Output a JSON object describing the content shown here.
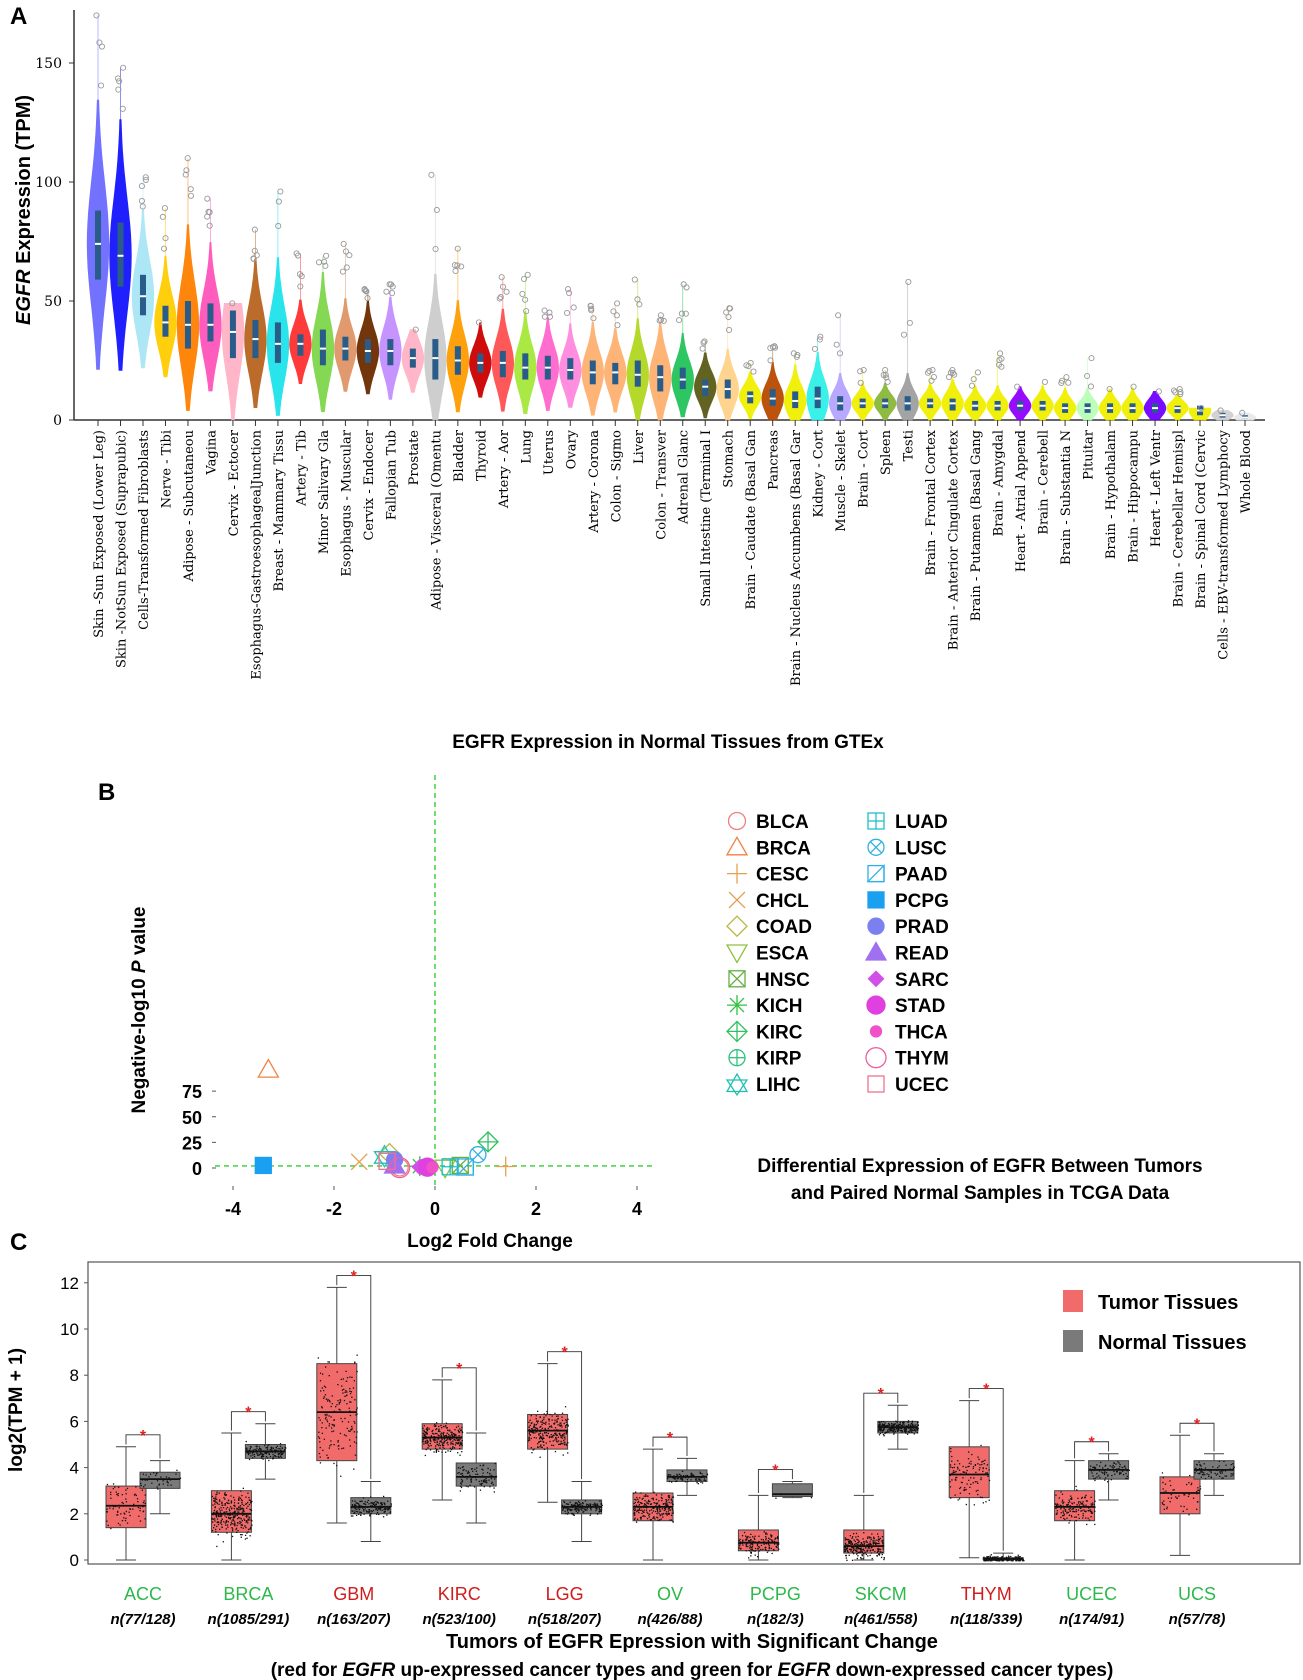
{
  "chart_data": [
    {
      "panel": "A",
      "type": "violin",
      "title": "EGFR Expression in Normal Tissues from GTEx",
      "ylabel_italic": "EGFR",
      "ylabel_rest": " Expression (TPM)",
      "yticks": [
        0,
        50,
        100,
        150
      ],
      "ylim": [
        0,
        172
      ],
      "categories": [
        "Skin -Sun Exposed (Lower Leg)",
        "Skin -NotSun Exposed (Suprapubic)",
        "Cells-Transformed Fibroblasts",
        "Nerve - Tibi",
        "Adipose - Subcutaneou",
        "Vagina",
        "Cervix - Ectocer",
        "Esophagus-GastroesophagealJunction",
        "Breast - Mammary Tissu",
        "Artery - Tib",
        "Minor Salivary Gla",
        "Esophagus - Muscular",
        "Cervix - Endocer",
        "Fallopian Tub",
        "Prostate",
        "Adipose - Visceral (Omentu",
        "Bladder",
        "Thyroid",
        "Artery - Aor",
        "Lung",
        "Uterus",
        "Ovary",
        "Artery - Corona",
        "Colon - Sigmo",
        "Liver",
        "Colon - Transver",
        "Adrenal Glanc",
        "Small Intestine (Terminal I",
        "Stomach",
        "Brain - Caudate (Basal Gan",
        "Pancreas",
        "Brain - Nucleus Accumbens (Basal Gar",
        "Kidney - Cort",
        "Muscle - Skelet",
        "Brain - Cort",
        "Spleen",
        "Testi",
        "Brain - Frontal Cortex",
        "Brain - Anterior Cingulate Cortex",
        "Brain - Putamen (Basal Gang",
        "Brain - Amygdal",
        "Heart - Atrial Append",
        "Brain - Cerebell",
        "Brain - Substantia N",
        "Pituitar",
        "Brain - Hypothalam",
        "Brain - Hippocampu",
        "Heart - Left Ventr",
        "Brain - Cerebellar Hemispl",
        "Brain - Spinal Cord (Cervic",
        "Cells - EBV-transformed Lymphocy",
        "Whole Blood"
      ],
      "medians": [
        74,
        69,
        52,
        41,
        40,
        40,
        37,
        34,
        32,
        32,
        30,
        30,
        29,
        29,
        26,
        26,
        25,
        24,
        24,
        22,
        22,
        21,
        20,
        20,
        19,
        18,
        17,
        14,
        13,
        10,
        9,
        8,
        9,
        7,
        7,
        7,
        7,
        7,
        7,
        6,
        6,
        6,
        6,
        5,
        5,
        5,
        5,
        5,
        5,
        4,
        2,
        1
      ],
      "q1": [
        59,
        56,
        44,
        35,
        30,
        33,
        26,
        26,
        24,
        27,
        23,
        25,
        24,
        23,
        22,
        17,
        19,
        20,
        18,
        17,
        17,
        17,
        15,
        15,
        14,
        12,
        13,
        10,
        9,
        7,
        6,
        5,
        5,
        4,
        5,
        5,
        4,
        5,
        4,
        4,
        4,
        4,
        4,
        3,
        3,
        3,
        3,
        3,
        3,
        2,
        1,
        0.5
      ],
      "q3": [
        88,
        83,
        61,
        48,
        50,
        49,
        46,
        42,
        41,
        36,
        38,
        35,
        34,
        34,
        30,
        34,
        31,
        28,
        29,
        28,
        27,
        26,
        25,
        24,
        25,
        23,
        22,
        17,
        17,
        12,
        13,
        12,
        14,
        10,
        9,
        9,
        10,
        9,
        9,
        8,
        8,
        8,
        8,
        7,
        7,
        7,
        7,
        7,
        6,
        6,
        3,
        2
      ],
      "maxes": [
        170,
        148,
        102,
        89,
        110,
        93,
        49,
        80,
        96,
        70,
        69,
        74,
        55,
        57,
        38,
        103,
        72,
        41,
        60,
        61,
        46,
        55,
        48,
        49,
        59,
        44,
        57,
        33,
        47,
        24,
        31,
        28,
        35,
        44,
        21,
        21,
        58,
        21,
        21,
        20,
        28,
        14,
        16,
        18,
        26,
        13,
        14,
        12,
        13,
        5,
        4,
        3
      ],
      "colors": [
        "#6b6bff",
        "#1515ff",
        "#a9e6f5",
        "#ffcc00",
        "#ff8000",
        "#ff55bb",
        "#ffb3c6",
        "#b8641f",
        "#1ee4ea",
        "#ff3030",
        "#7fd64a",
        "#e09566",
        "#6b2b00",
        "#c48fff",
        "#ffb3c6",
        "#cccccc",
        "#ff9c00",
        "#cc0000",
        "#ff5050",
        "#a6e83a",
        "#ff66cc",
        "#ff88dd",
        "#ffb070",
        "#ffb070",
        "#b0d820",
        "#ffb070",
        "#22c45a",
        "#5a5a18",
        "#ffd28a",
        "#f0f000",
        "#b84a00",
        "#f0f000",
        "#30f0e8",
        "#b5a5ff",
        "#f0f000",
        "#8ab838",
        "#a0a0a0",
        "#f0f000",
        "#f0f000",
        "#f0f000",
        "#f0f000",
        "#9000ff",
        "#f0f000",
        "#f0f000",
        "#b8ffb8",
        "#f0f000",
        "#f0f000",
        "#7000ff",
        "#f0f000",
        "#f0f000",
        "#d0d0d0",
        "#e8e8e8"
      ]
    },
    {
      "panel": "B",
      "type": "scatter",
      "title_line1": "Differential Expression of EGFR Between Tumors",
      "title_line2": "and Paired Normal Samples in TCGA Data",
      "xlabel": "Log2 Fold Change",
      "ylabel_pre": "Negative-log10 ",
      "ylabel_italic": "P",
      "ylabel_post": " value",
      "xticks": [
        -4,
        -2,
        0,
        2,
        4
      ],
      "yticks": [
        0,
        25,
        50,
        75
      ],
      "threshold_y": 2,
      "series": [
        {
          "name": "BLCA",
          "x": -0.7,
          "y": 0.5,
          "shape": "circle-open",
          "color": "#f08080"
        },
        {
          "name": "BRCA",
          "x": -3.3,
          "y": 96,
          "shape": "triangle-open",
          "color": "#f08040"
        },
        {
          "name": "CESC",
          "x": 1.4,
          "y": 1.5,
          "shape": "plus",
          "color": "#e8a050"
        },
        {
          "name": "CHCL",
          "x": -1.5,
          "y": 6,
          "shape": "x",
          "color": "#e0a050"
        },
        {
          "name": "COAD",
          "x": -0.9,
          "y": 14,
          "shape": "diamond-open",
          "color": "#b8b840"
        },
        {
          "name": "ESCA",
          "x": 0.2,
          "y": 0.3,
          "shape": "triangle-down-open",
          "color": "#90c040"
        },
        {
          "name": "HNSC",
          "x": 0.5,
          "y": 2.5,
          "shape": "square-x",
          "color": "#60b040"
        },
        {
          "name": "KICH",
          "x": -0.3,
          "y": 1.8,
          "shape": "asterisk",
          "color": "#30c040"
        },
        {
          "name": "KIRC",
          "x": 1.05,
          "y": 25.5,
          "shape": "diamond-plus",
          "color": "#30c060"
        },
        {
          "name": "KIRP",
          "x": -0.2,
          "y": 1,
          "shape": "circle-plus",
          "color": "#30c080"
        },
        {
          "name": "LIHC",
          "x": -1.0,
          "y": 12,
          "shape": "star",
          "color": "#20c0b0"
        },
        {
          "name": "LUAD",
          "x": 0.3,
          "y": 1.2,
          "shape": "square-plus",
          "color": "#20c0c8"
        },
        {
          "name": "LUSC",
          "x": 0.85,
          "y": 13,
          "shape": "circle-x",
          "color": "#30b0e0"
        },
        {
          "name": "PAAD",
          "x": 0.6,
          "y": 1,
          "shape": "triangle-square",
          "color": "#30b0e8"
        },
        {
          "name": "PCPG",
          "x": -3.4,
          "y": 2.5,
          "shape": "square",
          "color": "#1aa0f0"
        },
        {
          "name": "PRAD",
          "x": -0.8,
          "y": 8,
          "shape": "circle",
          "color": "#7a80f0"
        },
        {
          "name": "READ",
          "x": -0.8,
          "y": 2.5,
          "shape": "triangle",
          "color": "#a070f0"
        },
        {
          "name": "SARC",
          "x": -0.3,
          "y": 1,
          "shape": "diamond",
          "color": "#d050e8"
        },
        {
          "name": "STAD",
          "x": -0.15,
          "y": 0.8,
          "shape": "circle-big",
          "color": "#e040e0"
        },
        {
          "name": "THCA",
          "x": -0.05,
          "y": 0.6,
          "shape": "dot",
          "color": "#f050c8"
        },
        {
          "name": "THYM",
          "x": -0.7,
          "y": 0.4,
          "shape": "circle-open-big",
          "color": "#f060a0"
        },
        {
          "name": "UCEC",
          "x": -0.95,
          "y": 6.5,
          "shape": "square-open",
          "color": "#f07090"
        }
      ]
    },
    {
      "panel": "C",
      "type": "box",
      "ylabel": "log2(TPM + 1)",
      "yticks": [
        0,
        2,
        4,
        6,
        8,
        10,
        12
      ],
      "xlabel": "Tumors of EGFR Epression with Significant Change",
      "subtitle_parts": [
        "(red for ",
        "EGFR",
        " up-expressed cancer types and green for ",
        "EGFR",
        " down-expressed cancer types)"
      ],
      "legend": [
        "Tumor Tissues",
        "Normal Tissues"
      ],
      "legend_colors": [
        "#f26b6b",
        "#7a7a7a"
      ],
      "star": "*",
      "categories": [
        {
          "name": "ACC",
          "n": "n(77/128)",
          "color": "#2db84a",
          "tumor": [
            0,
            1.4,
            2.35,
            3.2,
            4.9
          ],
          "normal": [
            2.0,
            3.1,
            3.5,
            3.8,
            4.3
          ],
          "pts": [
            77,
            40
          ]
        },
        {
          "name": "BRCA",
          "n": "n(1085/291)",
          "color": "#2db84a",
          "tumor": [
            0,
            1.2,
            2.0,
            3.0,
            5.5
          ],
          "normal": [
            3.5,
            4.4,
            4.7,
            5.0,
            5.9
          ],
          "pts": [
            300,
            150
          ]
        },
        {
          "name": "GBM",
          "n": "n(163/207)",
          "color": "#d01c1c",
          "tumor": [
            1.6,
            4.3,
            6.4,
            8.5,
            11.8
          ],
          "normal": [
            0.8,
            2.0,
            2.3,
            2.7,
            3.4
          ],
          "pts": [
            160,
            150
          ]
        },
        {
          "name": "KIRC",
          "n": "n(523/100)",
          "color": "#d01c1c",
          "tumor": [
            2.6,
            4.8,
            5.3,
            5.9,
            7.8
          ],
          "normal": [
            1.6,
            3.2,
            3.6,
            4.2,
            5.5
          ],
          "pts": [
            250,
            100
          ]
        },
        {
          "name": "LGG",
          "n": "n(518/207)",
          "color": "#d01c1c",
          "tumor": [
            2.5,
            4.8,
            5.6,
            6.3,
            8.5
          ],
          "normal": [
            0.8,
            2.0,
            2.3,
            2.6,
            3.4
          ],
          "pts": [
            250,
            150
          ]
        },
        {
          "name": "OV",
          "n": "n(426/88)",
          "color": "#2db84a",
          "tumor": [
            0,
            1.7,
            2.3,
            2.9,
            4.8
          ],
          "normal": [
            2.8,
            3.4,
            3.6,
            3.9,
            4.4
          ],
          "pts": [
            220,
            80
          ]
        },
        {
          "name": "PCPG",
          "n": "n(182/3)",
          "color": "#2db84a",
          "tumor": [
            0,
            0.4,
            0.75,
            1.3,
            2.8
          ],
          "normal": [
            2.7,
            2.75,
            2.85,
            3.3,
            3.4
          ],
          "pts": [
            150,
            3
          ]
        },
        {
          "name": "SKCM",
          "n": "n(461/558)",
          "color": "#2db84a",
          "tumor": [
            0,
            0.3,
            0.6,
            1.3,
            2.8
          ],
          "normal": [
            4.8,
            5.5,
            5.75,
            6.0,
            6.7
          ],
          "pts": [
            250,
            250
          ]
        },
        {
          "name": "THYM",
          "n": "n(118/339)",
          "color": "#d01c1c",
          "tumor": [
            0.1,
            2.7,
            3.7,
            4.9,
            6.9
          ],
          "normal": [
            0,
            0.02,
            0.05,
            0.1,
            0.3
          ],
          "pts": [
            110,
            150
          ]
        },
        {
          "name": "UCEC",
          "n": "n(174/91)",
          "color": "#2db84a",
          "tumor": [
            0,
            1.7,
            2.3,
            3.0,
            4.3
          ],
          "normal": [
            2.6,
            3.5,
            3.9,
            4.3,
            4.6
          ],
          "pts": [
            150,
            80
          ]
        },
        {
          "name": "UCS",
          "n": "n(57/78)",
          "color": "#2db84a",
          "tumor": [
            0.2,
            2.0,
            2.9,
            3.6,
            5.4
          ],
          "normal": [
            2.8,
            3.5,
            3.9,
            4.3,
            4.6
          ],
          "pts": [
            57,
            78
          ]
        }
      ]
    }
  ],
  "panel_labels": [
    "A",
    "B",
    "C"
  ]
}
